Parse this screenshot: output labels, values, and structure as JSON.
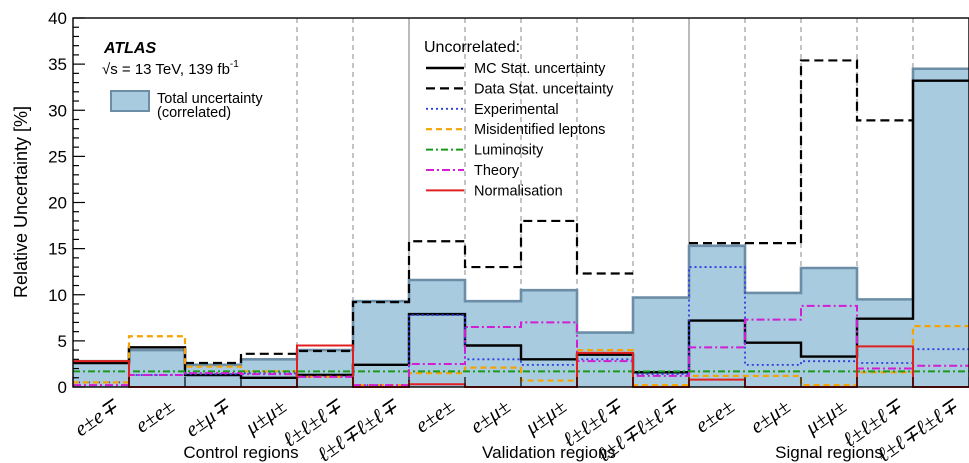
{
  "chart_data": {
    "type": "bar",
    "ylabel": "Relative Uncertainty [%]",
    "ylim": [
      0,
      40
    ],
    "yticks": [
      "0",
      "5",
      "10",
      "15",
      "20",
      "25",
      "30",
      "35",
      "40"
    ],
    "categories": [
      "e±e∓",
      "e±e±",
      "e±μ∓",
      "μ±μ±",
      "ℓ±ℓ±ℓ∓",
      "ℓ±ℓ∓ℓ±ℓ∓",
      "e±e±",
      "e±μ±",
      "μ±μ±",
      "ℓ±ℓ±ℓ∓",
      "ℓ±ℓ∓ℓ±ℓ∓",
      "e±e±",
      "e±μ±",
      "μ±μ±",
      "ℓ±ℓ±ℓ∓",
      "ℓ±ℓ∓ℓ±ℓ∓"
    ],
    "groups": [
      {
        "label": "Control regions",
        "start": 0,
        "end": 5
      },
      {
        "label": "Validation regions",
        "start": 6,
        "end": 10
      },
      {
        "label": "Signal regions",
        "start": 11,
        "end": 15
      }
    ],
    "grid": false,
    "legend_title": "Uncorrelated:",
    "annotations": {
      "experiment": "ATLAS",
      "energy": "√s = 13 TeV, 139 fb",
      "lumi_exp": "-1"
    },
    "total": {
      "name": "Total uncertainty (correlated)",
      "name_line1": "Total uncertainty",
      "name_line2": "(correlated)",
      "color": "#a9cbe0",
      "edge": "#6b8ea6",
      "values": [
        2.8,
        4.0,
        2.4,
        3.0,
        4.0,
        9.3,
        11.6,
        9.3,
        10.5,
        5.9,
        9.7,
        15.3,
        10.2,
        12.9,
        9.5,
        34.5
      ]
    },
    "series": [
      {
        "name": "MC Stat. uncertainty",
        "color": "#000000",
        "dash": "",
        "width": 2.4,
        "values": [
          2.6,
          4.3,
          1.3,
          1.0,
          1.3,
          2.4,
          7.9,
          4.5,
          3.0,
          3.5,
          1.6,
          7.2,
          4.8,
          3.3,
          7.4,
          33.2
        ]
      },
      {
        "name": "Data Stat. uncertainty",
        "color": "#000000",
        "dash": "9,5",
        "width": 2.2,
        "values": [
          null,
          null,
          2.6,
          3.6,
          3.9,
          9.2,
          15.8,
          13.0,
          18.0,
          12.3,
          null,
          15.6,
          15.6,
          35.4,
          28.9,
          null
        ]
      },
      {
        "name": "Experimental",
        "color": "#2c3fe0",
        "dash": "2,3",
        "width": 1.8,
        "values": [
          0.5,
          1.3,
          1.4,
          1.5,
          1.1,
          0.2,
          7.8,
          3.0,
          2.4,
          3.0,
          1.4,
          13.0,
          2.4,
          2.8,
          2.6,
          4.1
        ]
      },
      {
        "name": "Misidentified leptons",
        "color": "#f5a300",
        "dash": "6,4",
        "width": 2.2,
        "values": [
          0.5,
          5.5,
          2.2,
          1.7,
          1.1,
          0.2,
          1.5,
          2.1,
          0.7,
          4.0,
          0.2,
          1.2,
          1.2,
          0.2,
          1.6,
          6.6
        ]
      },
      {
        "name": "Luminosity",
        "color": "#1a9a1a",
        "dash": "7,3,2,3",
        "width": 2.0,
        "values": [
          1.7,
          1.7,
          1.7,
          1.7,
          1.7,
          1.7,
          1.7,
          1.7,
          1.7,
          1.7,
          1.7,
          1.7,
          1.7,
          1.7,
          1.7,
          1.7
        ]
      },
      {
        "name": "Theory",
        "color": "#d21ed2",
        "dash": "8,3,2,3",
        "width": 2.0,
        "values": [
          0.2,
          1.3,
          1.5,
          1.4,
          1.1,
          0.2,
          2.5,
          6.5,
          7.0,
          2.8,
          1.2,
          4.3,
          7.3,
          8.8,
          2.0,
          2.3
        ]
      },
      {
        "name": "Normalisation",
        "color": "#e02020",
        "dash": "",
        "width": 2.0,
        "values": [
          2.8,
          0.0,
          0.0,
          0.0,
          4.5,
          0.0,
          0.3,
          0.0,
          0.0,
          3.7,
          0.0,
          0.8,
          0.0,
          0.0,
          4.4,
          0.0
        ]
      }
    ]
  }
}
